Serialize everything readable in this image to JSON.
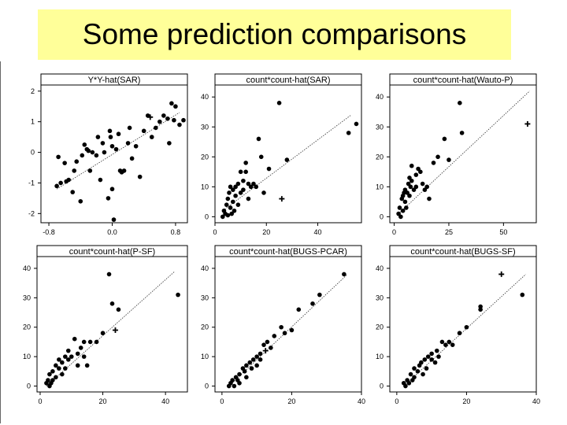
{
  "slide": {
    "title": "Some prediction comparisons"
  },
  "chart_data": [
    {
      "type": "scatter",
      "title": "Y*Y-hat(SAR)",
      "xlim": [
        -0.9,
        0.95
      ],
      "ylim": [
        -2.3,
        2.2
      ],
      "xticks": [
        "-0.8",
        "0.0",
        "0.8"
      ],
      "xtick_values": [
        -0.8,
        0.0,
        0.8
      ],
      "yticks": [
        "2",
        "1",
        "0",
        "-1",
        "-2"
      ],
      "ytick_values": [
        2,
        1,
        0,
        -1,
        -2
      ],
      "fit_line": [
        [
          -0.7,
          -1.2
        ],
        [
          0.85,
          1.3
        ]
      ],
      "points": [
        [
          -0.7,
          -1.1
        ],
        [
          -0.68,
          -0.15
        ],
        [
          -0.65,
          -1.0
        ],
        [
          -0.6,
          -0.35
        ],
        [
          -0.58,
          -0.95
        ],
        [
          -0.55,
          -0.9
        ],
        [
          -0.5,
          -1.3
        ],
        [
          -0.48,
          -0.6
        ],
        [
          -0.45,
          -0.3
        ],
        [
          -0.4,
          -1.6
        ],
        [
          -0.38,
          -0.1
        ],
        [
          -0.35,
          0.25
        ],
        [
          -0.32,
          0.1
        ],
        [
          -0.3,
          0.05
        ],
        [
          -0.28,
          -0.6
        ],
        [
          -0.25,
          0.0
        ],
        [
          -0.2,
          -0.1
        ],
        [
          -0.18,
          0.5
        ],
        [
          -0.15,
          -0.9
        ],
        [
          -0.12,
          0.3
        ],
        [
          -0.1,
          0.0
        ],
        [
          -0.05,
          -1.5
        ],
        [
          -0.03,
          0.7
        ],
        [
          -0.02,
          0.5
        ],
        [
          0.0,
          0.2
        ],
        [
          0.0,
          -1.2
        ],
        [
          0.02,
          -2.2
        ],
        [
          0.05,
          0.1
        ],
        [
          0.08,
          0.6
        ],
        [
          0.1,
          -0.6
        ],
        [
          0.12,
          -0.65
        ],
        [
          0.15,
          -0.6
        ],
        [
          0.2,
          0.3
        ],
        [
          0.22,
          0.8
        ],
        [
          0.25,
          -0.2
        ],
        [
          0.3,
          0.2
        ],
        [
          0.35,
          -0.8
        ],
        [
          0.4,
          0.7
        ],
        [
          0.45,
          1.2
        ],
        [
          0.5,
          0.5
        ],
        [
          0.55,
          0.8
        ],
        [
          0.6,
          1.0
        ],
        [
          0.65,
          1.2
        ],
        [
          0.7,
          1.1
        ],
        [
          0.72,
          0.3
        ],
        [
          0.75,
          1.6
        ],
        [
          0.78,
          1.05
        ],
        [
          0.8,
          1.5
        ],
        [
          0.85,
          0.9
        ],
        [
          0.9,
          1.05
        ]
      ],
      "crosses": [
        [
          0.48,
          1.15
        ]
      ]
    },
    {
      "type": "scatter",
      "title": "count*count-hat(SAR)",
      "xlim": [
        0,
        57
      ],
      "ylim": [
        -2,
        44
      ],
      "xticks": [
        "0",
        "20",
        "40"
      ],
      "xtick_values": [
        0,
        20,
        40
      ],
      "yticks": [
        "40",
        "30",
        "20",
        "10",
        "0"
      ],
      "ytick_values": [
        40,
        30,
        20,
        10,
        0
      ],
      "fit_line": [
        [
          3,
          2
        ],
        [
          53,
          34
        ]
      ],
      "points": [
        [
          3,
          0
        ],
        [
          3.5,
          2
        ],
        [
          4,
          1
        ],
        [
          4.5,
          4
        ],
        [
          5,
          0.5
        ],
        [
          5,
          6
        ],
        [
          5.5,
          8
        ],
        [
          6,
          3
        ],
        [
          6,
          10
        ],
        [
          6.5,
          1
        ],
        [
          7,
          5
        ],
        [
          7,
          9
        ],
        [
          7.5,
          2
        ],
        [
          8,
          7
        ],
        [
          8,
          10
        ],
        [
          9,
          11
        ],
        [
          9,
          4
        ],
        [
          10,
          8
        ],
        [
          10,
          15
        ],
        [
          11,
          12
        ],
        [
          11,
          9
        ],
        [
          12,
          15
        ],
        [
          12,
          18
        ],
        [
          13,
          11
        ],
        [
          13,
          6
        ],
        [
          14,
          10
        ],
        [
          15,
          11
        ],
        [
          16,
          10
        ],
        [
          17,
          26
        ],
        [
          18,
          20
        ],
        [
          19,
          8
        ],
        [
          21,
          16
        ],
        [
          25,
          38
        ],
        [
          28,
          19
        ],
        [
          52,
          28
        ],
        [
          55,
          31
        ]
      ],
      "crosses": [
        [
          26,
          6
        ]
      ]
    },
    {
      "type": "scatter",
      "title": "count*count-hat(Wauto-P)",
      "xlim": [
        -2,
        65
      ],
      "ylim": [
        -2,
        44
      ],
      "xticks": [
        "0",
        "25",
        "50"
      ],
      "xtick_values": [
        0,
        25,
        50
      ],
      "yticks": [
        "40",
        "30",
        "20",
        "10",
        "0"
      ],
      "ytick_values": [
        40,
        30,
        20,
        10,
        0
      ],
      "fit_line": [
        [
          2,
          1
        ],
        [
          62,
          42
        ]
      ],
      "points": [
        [
          2,
          1
        ],
        [
          2.5,
          3
        ],
        [
          3,
          0
        ],
        [
          3.5,
          6
        ],
        [
          4,
          2
        ],
        [
          4,
          7
        ],
        [
          4.5,
          8
        ],
        [
          5,
          5
        ],
        [
          5,
          9
        ],
        [
          5.5,
          3
        ],
        [
          6,
          8
        ],
        [
          6.5,
          11
        ],
        [
          7,
          7
        ],
        [
          7,
          13
        ],
        [
          7.5,
          10
        ],
        [
          8,
          17
        ],
        [
          8,
          12
        ],
        [
          9,
          9
        ],
        [
          10,
          14
        ],
        [
          10,
          10
        ],
        [
          11,
          16
        ],
        [
          12,
          15
        ],
        [
          13,
          11
        ],
        [
          14,
          9
        ],
        [
          15,
          10
        ],
        [
          16,
          6
        ],
        [
          18,
          18
        ],
        [
          20,
          20
        ],
        [
          23,
          26
        ],
        [
          25,
          19
        ],
        [
          30,
          38
        ],
        [
          31,
          28
        ]
      ],
      "crosses": [
        [
          61,
          31
        ]
      ]
    },
    {
      "type": "scatter",
      "title": "count*count-hat(P-SF)",
      "xlim": [
        -1,
        47
      ],
      "ylim": [
        -2,
        44
      ],
      "xticks": [
        "0",
        "20",
        "40"
      ],
      "xtick_values": [
        0,
        20,
        40
      ],
      "yticks": [
        "40",
        "30",
        "20",
        "10",
        "0"
      ],
      "ytick_values": [
        40,
        30,
        20,
        10,
        0
      ],
      "fit_line": [
        [
          2,
          0
        ],
        [
          43,
          39
        ]
      ],
      "points": [
        [
          2,
          1
        ],
        [
          2.5,
          2
        ],
        [
          3,
          0
        ],
        [
          3,
          4
        ],
        [
          3.5,
          1
        ],
        [
          4,
          5
        ],
        [
          4,
          2
        ],
        [
          5,
          7
        ],
        [
          5,
          3
        ],
        [
          6,
          6
        ],
        [
          6,
          9
        ],
        [
          7,
          8
        ],
        [
          7,
          4
        ],
        [
          8,
          10
        ],
        [
          8,
          6
        ],
        [
          9,
          9
        ],
        [
          9,
          12
        ],
        [
          10,
          10
        ],
        [
          11,
          16
        ],
        [
          12,
          11
        ],
        [
          12,
          7
        ],
        [
          13,
          13
        ],
        [
          14,
          15
        ],
        [
          14,
          10
        ],
        [
          15,
          7
        ],
        [
          16,
          15
        ],
        [
          18,
          15
        ],
        [
          20,
          18
        ],
        [
          22,
          38
        ],
        [
          23,
          28
        ],
        [
          25,
          26
        ],
        [
          44,
          31
        ]
      ],
      "crosses": [
        [
          24,
          19
        ]
      ]
    },
    {
      "type": "scatter",
      "title": "count*count-hat(BUGS-PCAR)",
      "xlim": [
        -2,
        40
      ],
      "ylim": [
        -2,
        44
      ],
      "xticks": [
        "0",
        "20",
        "40"
      ],
      "xtick_values": [
        0,
        20,
        40
      ],
      "yticks": [
        "40",
        "30",
        "20",
        "10",
        "0"
      ],
      "ytick_values": [
        40,
        30,
        20,
        10,
        0
      ],
      "fit_line": [
        [
          2,
          0
        ],
        [
          36,
          38
        ]
      ],
      "points": [
        [
          2,
          0
        ],
        [
          2.5,
          1
        ],
        [
          3,
          2
        ],
        [
          3.5,
          0
        ],
        [
          4,
          3
        ],
        [
          4.5,
          2
        ],
        [
          5,
          4
        ],
        [
          5,
          1
        ],
        [
          6,
          6
        ],
        [
          6.5,
          5
        ],
        [
          7,
          7
        ],
        [
          7,
          3
        ],
        [
          8,
          8
        ],
        [
          8.5,
          6
        ],
        [
          9,
          9
        ],
        [
          10,
          10
        ],
        [
          10,
          7
        ],
        [
          11,
          11
        ],
        [
          11,
          9
        ],
        [
          12,
          14
        ],
        [
          13,
          15
        ],
        [
          14,
          13
        ],
        [
          15,
          17
        ],
        [
          17,
          20
        ],
        [
          18,
          18
        ],
        [
          20,
          19
        ],
        [
          22,
          26
        ],
        [
          26,
          28
        ],
        [
          28,
          31
        ],
        [
          35,
          38
        ]
      ],
      "crosses": [
        [
          12.5,
          12
        ]
      ]
    },
    {
      "type": "scatter",
      "title": "count*count-hat(BUGS-SF)",
      "xlim": [
        -2,
        40
      ],
      "ylim": [
        -2,
        44
      ],
      "xticks": [
        "0",
        "20",
        "40"
      ],
      "xtick_values": [
        0,
        20,
        40
      ],
      "yticks": [
        "40",
        "30",
        "20",
        "10",
        "0"
      ],
      "ytick_values": [
        40,
        30,
        20,
        10,
        0
      ],
      "fit_line": [
        [
          2,
          0
        ],
        [
          37,
          38
        ]
      ],
      "points": [
        [
          2,
          1
        ],
        [
          2.5,
          0
        ],
        [
          3,
          2
        ],
        [
          3.5,
          1
        ],
        [
          4,
          4
        ],
        [
          4.5,
          2
        ],
        [
          5,
          6
        ],
        [
          5,
          3
        ],
        [
          6,
          5
        ],
        [
          6.5,
          7
        ],
        [
          7,
          8
        ],
        [
          7.5,
          4
        ],
        [
          8,
          9
        ],
        [
          8.5,
          6
        ],
        [
          9,
          10
        ],
        [
          10,
          9
        ],
        [
          10,
          11
        ],
        [
          11,
          8
        ],
        [
          11.5,
          12
        ],
        [
          12,
          10
        ],
        [
          13,
          15
        ],
        [
          14,
          14
        ],
        [
          15,
          15
        ],
        [
          16,
          14
        ],
        [
          18,
          18
        ],
        [
          20,
          20
        ],
        [
          24,
          27
        ],
        [
          24,
          26
        ],
        [
          36,
          31
        ]
      ],
      "crosses": [
        [
          30,
          38
        ]
      ]
    }
  ]
}
